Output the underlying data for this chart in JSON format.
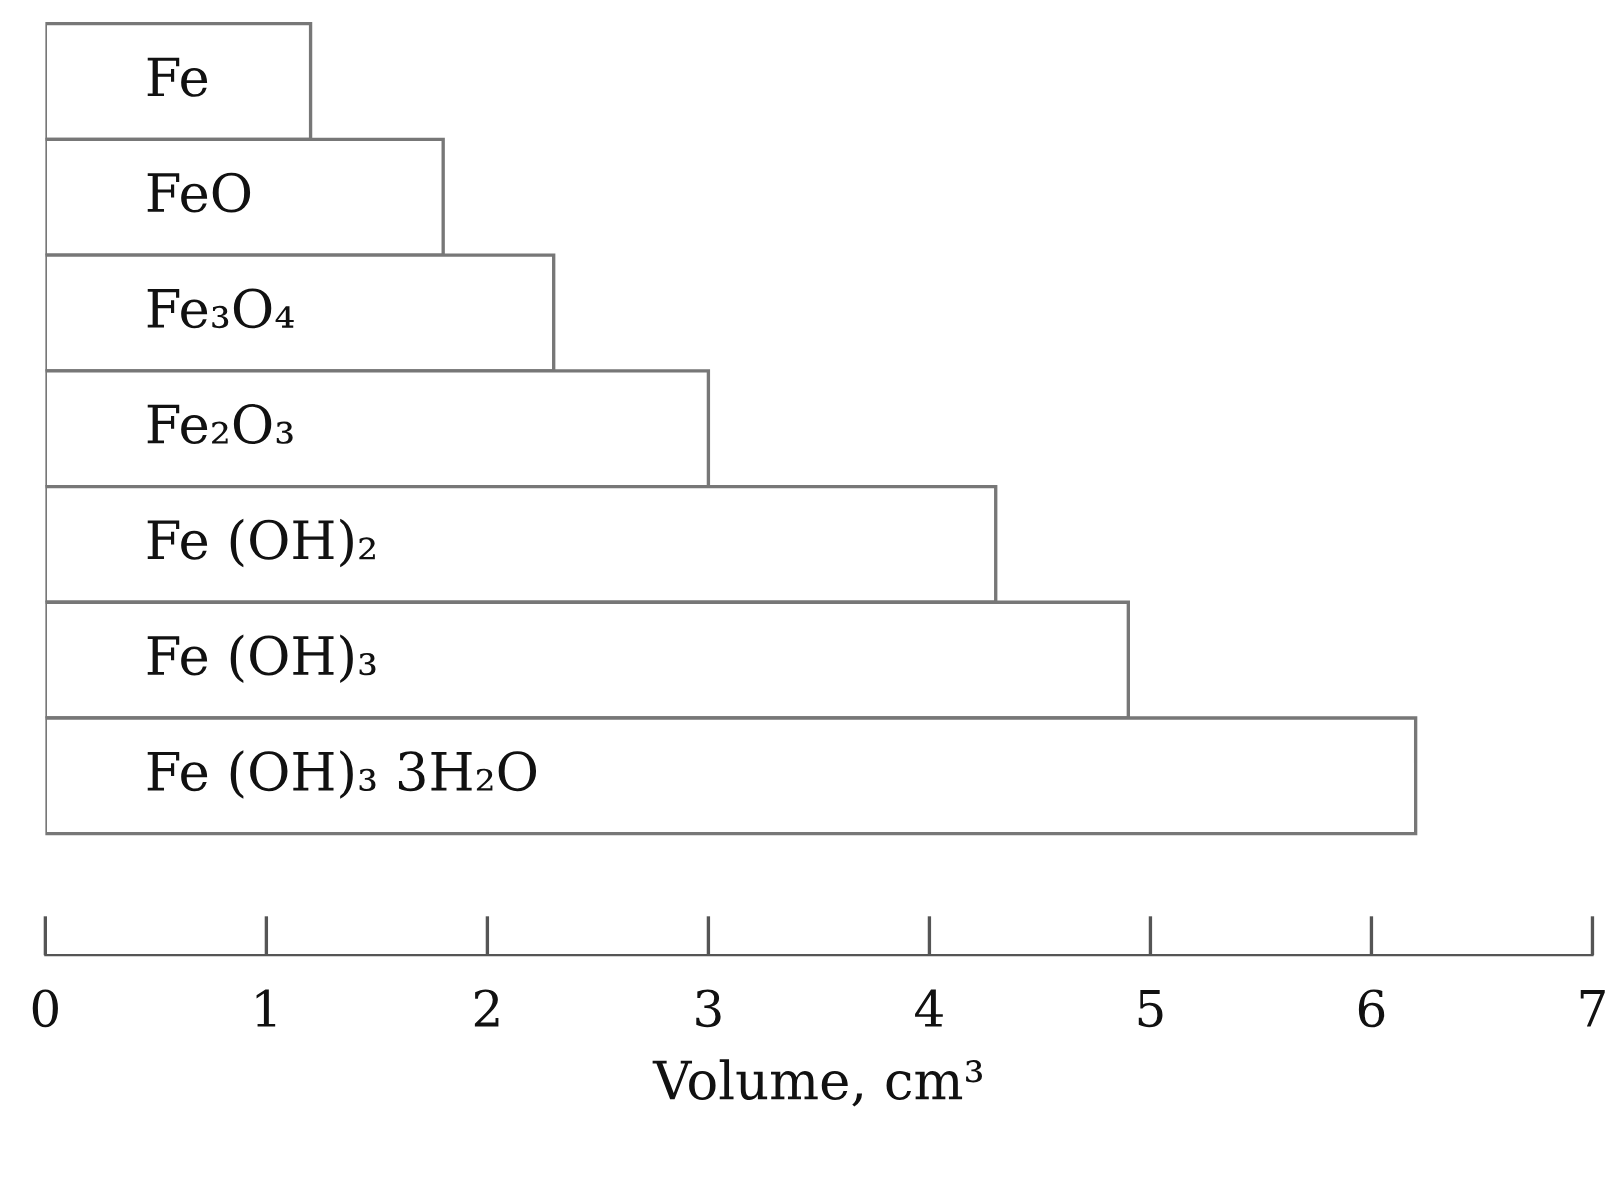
{
  "chart_data": {
    "type": "bar",
    "orientation": "horizontal",
    "categories": [
      "Fe",
      "FeO",
      "Fe₃O₄",
      "Fe₂O₃",
      "Fe (OH)₂",
      "Fe (OH)₃",
      "Fe (OH)₃ 3H₂O"
    ],
    "values": [
      1.2,
      1.8,
      2.3,
      3.0,
      4.3,
      4.9,
      6.2
    ],
    "color": "#ffffff",
    "xlim": [
      0,
      7
    ],
    "xticks": [
      0,
      1,
      2,
      3,
      4,
      5,
      6,
      7
    ],
    "xlabel": "Volume, cm³",
    "grid": false
  }
}
